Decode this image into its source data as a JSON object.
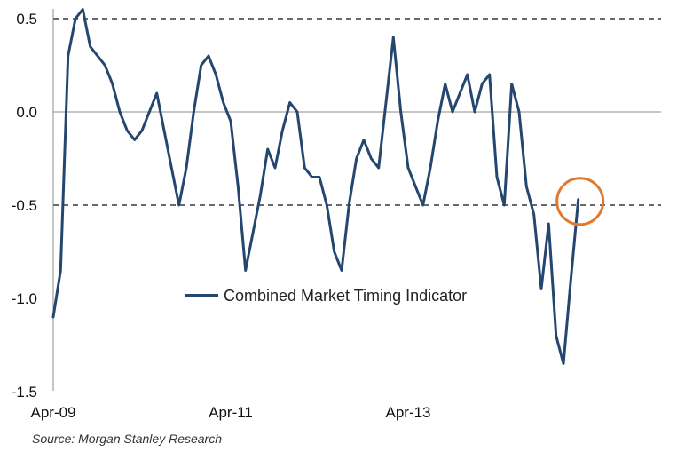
{
  "chart_data": {
    "type": "line",
    "title": "",
    "xlabel": "",
    "ylabel": "",
    "xlim": [
      "2009-04",
      "2015-04"
    ],
    "ylim": [
      -1.5,
      0.6
    ],
    "yticks": [
      0.5,
      0.0,
      -0.5,
      -1.0,
      -1.5
    ],
    "ytick_labels": [
      "0.5",
      "0.0",
      "-0.5",
      "-1.0",
      "-1.5"
    ],
    "xticks": [
      "2009-04",
      "2011-04",
      "2013-04"
    ],
    "xtick_labels": [
      "Apr-09",
      "Apr-11",
      "Apr-13"
    ],
    "reference_lines": [
      0.5,
      -0.5
    ],
    "zero_line": 0.0,
    "legend_position": "inside-bottom-center",
    "series": [
      {
        "name": "Combined Market Timing Indicator",
        "color": "#25476f",
        "x": [
          "2009-04",
          "2009-05",
          "2009-06",
          "2009-07",
          "2009-08",
          "2009-09",
          "2009-10",
          "2009-11",
          "2009-12",
          "2010-01",
          "2010-02",
          "2010-03",
          "2010-04",
          "2010-05",
          "2010-06",
          "2010-07",
          "2010-08",
          "2010-09",
          "2010-10",
          "2010-11",
          "2010-12",
          "2011-01",
          "2011-02",
          "2011-03",
          "2011-04",
          "2011-05",
          "2011-06",
          "2011-07",
          "2011-08",
          "2011-09",
          "2011-10",
          "2011-11",
          "2011-12",
          "2012-01",
          "2012-02",
          "2012-03",
          "2012-04",
          "2012-05",
          "2012-06",
          "2012-07",
          "2012-08",
          "2012-09",
          "2012-10",
          "2012-11",
          "2012-12",
          "2013-01",
          "2013-02",
          "2013-03",
          "2013-04",
          "2013-05",
          "2013-06",
          "2013-07",
          "2013-08",
          "2013-09",
          "2013-10",
          "2013-11",
          "2013-12",
          "2014-01",
          "2014-02",
          "2014-03",
          "2014-04",
          "2014-05",
          "2014-06",
          "2014-07",
          "2014-08",
          "2014-09",
          "2014-10",
          "2014-11",
          "2014-12",
          "2015-01",
          "2015-02",
          "2015-03"
        ],
        "values": [
          -1.1,
          -0.85,
          0.3,
          0.5,
          0.55,
          0.35,
          0.3,
          0.25,
          0.15,
          0.0,
          -0.1,
          -0.15,
          -0.1,
          0.0,
          0.1,
          -0.1,
          -0.3,
          -0.5,
          -0.3,
          0.0,
          0.25,
          0.3,
          0.2,
          0.05,
          -0.05,
          -0.4,
          -0.85,
          -0.65,
          -0.45,
          -0.2,
          -0.3,
          -0.1,
          0.05,
          0.0,
          -0.3,
          -0.35,
          -0.35,
          -0.5,
          -0.75,
          -0.85,
          -0.5,
          -0.25,
          -0.15,
          -0.25,
          -0.3,
          0.05,
          0.4,
          0.0,
          -0.3,
          -0.4,
          -0.5,
          -0.3,
          -0.05,
          0.15,
          0.0,
          0.1,
          0.2,
          0.0,
          0.15,
          0.2,
          -0.35,
          -0.5,
          0.15,
          0.0,
          -0.4,
          -0.55,
          -0.95,
          -0.6,
          -1.2,
          -1.35,
          -0.9,
          -0.47
        ]
      }
    ],
    "annotations": [
      {
        "type": "circle",
        "color": "#e07a2e",
        "x": "2015-03",
        "y": -0.48
      }
    ]
  },
  "source": "Source: Morgan Stanley Research"
}
